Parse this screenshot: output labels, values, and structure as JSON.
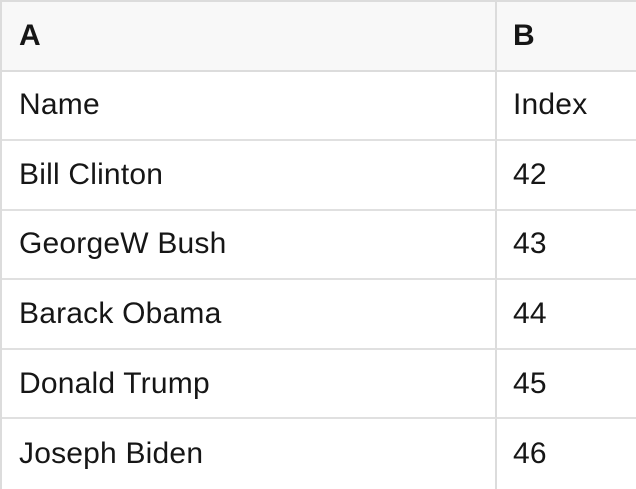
{
  "colors": {
    "header_bg": "#f8f8f8",
    "grid_border": "#dcdcdc",
    "row_border": "#e0e0e0",
    "text": "#161616",
    "body_bg": "#ffffff"
  },
  "table": {
    "header": {
      "a": "A",
      "b": "B"
    },
    "rows": [
      {
        "a": "Name",
        "b": "Index"
      },
      {
        "a": "Bill Clinton",
        "b": "42"
      },
      {
        "a": "GeorgeW Bush",
        "b": "43"
      },
      {
        "a": "Barack Obama",
        "b": "44"
      },
      {
        "a": "Donald Trump",
        "b": "45"
      },
      {
        "a": "Joseph Biden",
        "b": "46"
      }
    ]
  }
}
